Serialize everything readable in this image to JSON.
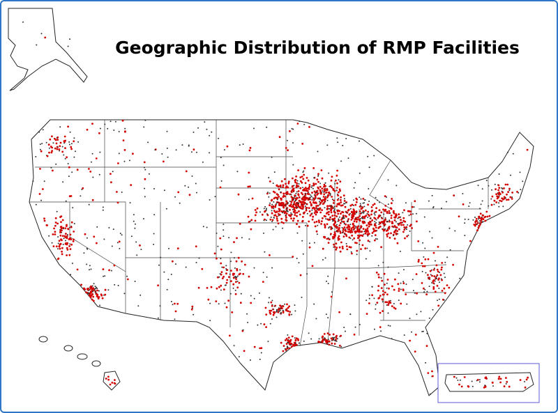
{
  "title": "Geographic Distribution of RMP Facilities"
}
